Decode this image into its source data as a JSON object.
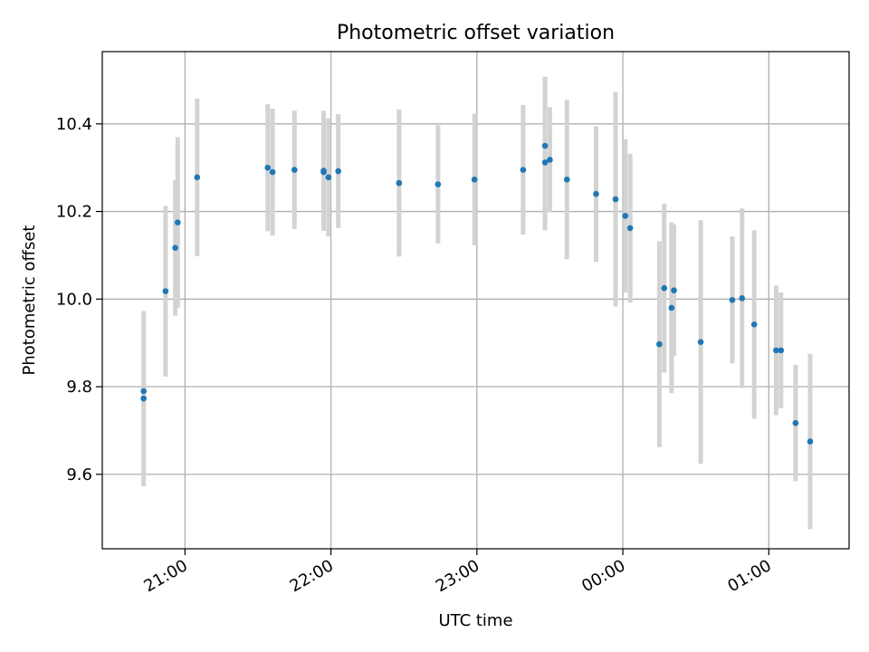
{
  "chart_data": {
    "type": "scatter",
    "title": "Photometric offset variation",
    "xlabel": "UTC time",
    "ylabel": "Photometric offset",
    "x_axis": {
      "kind": "time",
      "range": [
        "20:26",
        "01:33"
      ],
      "ticks": [
        {
          "value": "21:00",
          "label": "21:00"
        },
        {
          "value": "22:00",
          "label": "22:00"
        },
        {
          "value": "23:00",
          "label": "23:00"
        },
        {
          "value": "00:00",
          "label": "00:00"
        },
        {
          "value": "01:00",
          "label": "01:00"
        }
      ]
    },
    "y_axis": {
      "ylim": [
        9.43,
        10.565
      ],
      "ticks": [
        9.6,
        9.8,
        10.0,
        10.2,
        10.4
      ]
    },
    "grid": true,
    "legend": "none",
    "colors": {
      "marker": "#1f77b4",
      "errorbar": "#d3d3d3",
      "grid": "#b0b0b0",
      "axes": "#000000"
    },
    "points": [
      {
        "t": "20:43",
        "y": 9.79,
        "yerr": 0.0
      },
      {
        "t": "20:43",
        "y": 9.773,
        "yerr": 0.2
      },
      {
        "t": "20:52",
        "y": 10.018,
        "yerr": 0.195
      },
      {
        "t": "20:56",
        "y": 10.117,
        "yerr": 0.155
      },
      {
        "t": "20:57",
        "y": 10.175,
        "yerr": 0.195
      },
      {
        "t": "21:05",
        "y": 10.278,
        "yerr": 0.18
      },
      {
        "t": "21:34",
        "y": 10.3,
        "yerr": 0.145
      },
      {
        "t": "21:36",
        "y": 10.29,
        "yerr": 0.145
      },
      {
        "t": "21:45",
        "y": 10.295,
        "yerr": 0.135
      },
      {
        "t": "21:57",
        "y": 10.293,
        "yerr": 0.137
      },
      {
        "t": "21:57",
        "y": 10.29,
        "yerr": 0.0
      },
      {
        "t": "21:59",
        "y": 10.278,
        "yerr": 0.135
      },
      {
        "t": "22:03",
        "y": 10.292,
        "yerr": 0.13
      },
      {
        "t": "22:28",
        "y": 10.265,
        "yerr": 0.168
      },
      {
        "t": "22:44",
        "y": 10.262,
        "yerr": 0.135
      },
      {
        "t": "22:59",
        "y": 10.273,
        "yerr": 0.15
      },
      {
        "t": "23:19",
        "y": 10.295,
        "yerr": 0.148
      },
      {
        "t": "23:28",
        "y": 10.312,
        "yerr": 0.155
      },
      {
        "t": "23:28",
        "y": 10.35,
        "yerr": 0.158
      },
      {
        "t": "23:30",
        "y": 10.318,
        "yerr": 0.12
      },
      {
        "t": "23:37",
        "y": 10.273,
        "yerr": 0.182
      },
      {
        "t": "23:49",
        "y": 10.24,
        "yerr": 0.155
      },
      {
        "t": "23:57",
        "y": 10.228,
        "yerr": 0.245
      },
      {
        "t": "00:01",
        "y": 10.19,
        "yerr": 0.175
      },
      {
        "t": "00:03",
        "y": 10.162,
        "yerr": 0.17
      },
      {
        "t": "00:15",
        "y": 9.897,
        "yerr": 0.235
      },
      {
        "t": "00:17",
        "y": 10.025,
        "yerr": 0.193
      },
      {
        "t": "00:20",
        "y": 9.98,
        "yerr": 0.195
      },
      {
        "t": "00:21",
        "y": 10.02,
        "yerr": 0.15
      },
      {
        "t": "00:32",
        "y": 9.902,
        "yerr": 0.278
      },
      {
        "t": "00:45",
        "y": 9.998,
        "yerr": 0.145
      },
      {
        "t": "00:49",
        "y": 10.002,
        "yerr": 0.205
      },
      {
        "t": "00:54",
        "y": 9.942,
        "yerr": 0.215
      },
      {
        "t": "01:03",
        "y": 9.883,
        "yerr": 0.148
      },
      {
        "t": "01:05",
        "y": 9.883,
        "yerr": 0.132
      },
      {
        "t": "01:11",
        "y": 9.717,
        "yerr": 0.133
      },
      {
        "t": "01:17",
        "y": 9.675,
        "yerr": 0.2
      }
    ]
  }
}
